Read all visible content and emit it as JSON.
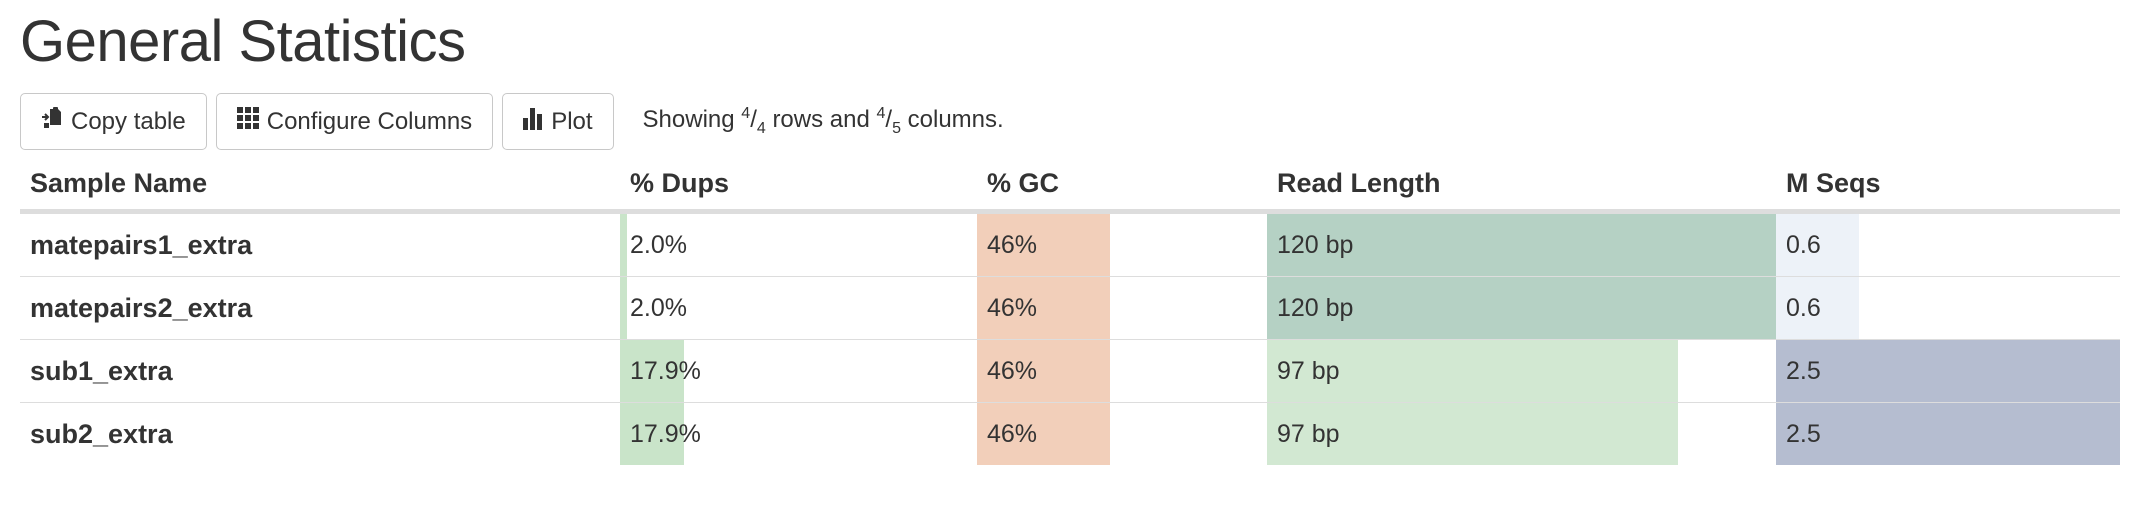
{
  "page_title": "General Statistics",
  "toolbar": {
    "copy_label": "Copy table",
    "copy_icon": "copy-icon",
    "configure_label": "Configure Columns",
    "configure_icon": "grid-icon",
    "plot_label": "Plot",
    "plot_icon": "bar-chart-icon",
    "status": {
      "prefix": "Showing",
      "rows_shown": "4",
      "rows_total": "4",
      "middle": "rows and",
      "cols_shown": "4",
      "cols_total": "5",
      "suffix": "columns."
    }
  },
  "table": {
    "columns": [
      "Sample Name",
      "% Dups",
      "% GC",
      "Read Length",
      "M Seqs"
    ],
    "column_colors": {
      "dups": "#c9e4c9",
      "gc": "#f2cfba",
      "read_length_high": "#b5d1c4",
      "read_length_low": "#d2e8d2",
      "mseqs_high": "#b5bdd0",
      "mseqs_low": "#edf2f8"
    },
    "rows": [
      {
        "name": "matepairs1_extra",
        "dups": "2.0%",
        "dups_fill": 0.02,
        "gc": "46%",
        "gc_fill": 0.46,
        "read_length": "120 bp",
        "read_length_fill": 1.0,
        "mseqs": "0.6",
        "mseqs_fill": 0.24
      },
      {
        "name": "matepairs2_extra",
        "dups": "2.0%",
        "dups_fill": 0.02,
        "gc": "46%",
        "gc_fill": 0.46,
        "read_length": "120 bp",
        "read_length_fill": 1.0,
        "mseqs": "0.6",
        "mseqs_fill": 0.24
      },
      {
        "name": "sub1_extra",
        "dups": "17.9%",
        "dups_fill": 0.179,
        "gc": "46%",
        "gc_fill": 0.46,
        "read_length": "97 bp",
        "read_length_fill": 0.808,
        "mseqs": "2.5",
        "mseqs_fill": 1.0
      },
      {
        "name": "sub2_extra",
        "dups": "17.9%",
        "dups_fill": 0.179,
        "gc": "46%",
        "gc_fill": 0.46,
        "read_length": "97 bp",
        "read_length_fill": 0.808,
        "mseqs": "2.5",
        "mseqs_fill": 1.0
      }
    ]
  }
}
